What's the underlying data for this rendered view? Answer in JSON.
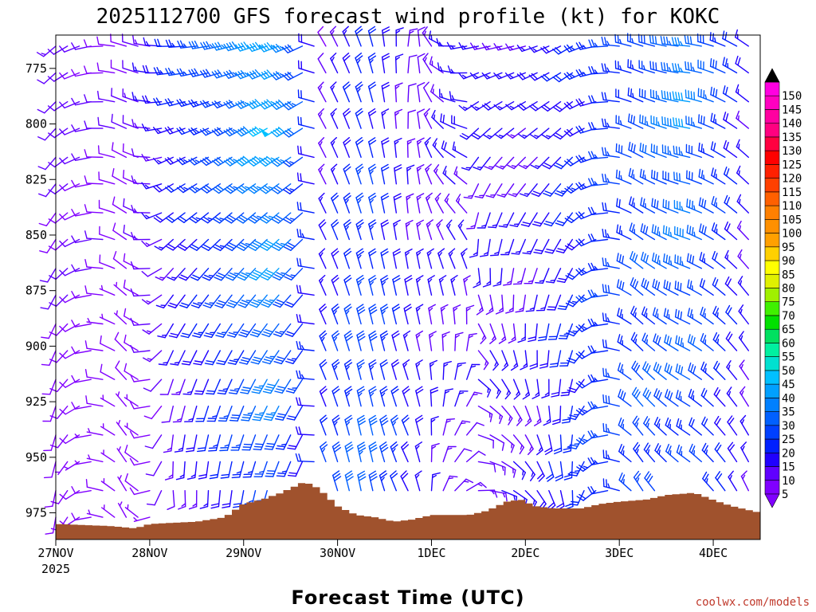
{
  "chart_data": {
    "type": "wind-barb-profile",
    "title": "2025112700 GFS forecast wind profile (kt) for KOKC",
    "xlabel": "Forecast Time (UTC)",
    "credit": "coolwx.com/models",
    "x_ticks": [
      {
        "label": "27NOV",
        "sublabel": "2025",
        "day": 0
      },
      {
        "label": "28NOV",
        "day": 1
      },
      {
        "label": "29NOV",
        "day": 2
      },
      {
        "label": "30NOV",
        "day": 3
      },
      {
        "label": "1DEC",
        "day": 4
      },
      {
        "label": "2DEC",
        "day": 5
      },
      {
        "label": "3DEC",
        "day": 6
      },
      {
        "label": "4DEC",
        "day": 7
      }
    ],
    "xlim_days": [
      0,
      7.5
    ],
    "y_ticks": [
      775,
      800,
      825,
      850,
      875,
      900,
      925,
      950,
      975
    ],
    "ylim_hpa": [
      760,
      987
    ],
    "colorbar": {
      "unit": "kt",
      "levels": [
        5,
        10,
        15,
        20,
        25,
        30,
        35,
        40,
        45,
        50,
        55,
        60,
        65,
        70,
        75,
        80,
        85,
        90,
        95,
        100,
        105,
        110,
        115,
        120,
        125,
        130,
        135,
        140,
        145,
        150
      ],
      "colors": [
        "#8000ff",
        "#6000ff",
        "#2000ff",
        "#0020ff",
        "#0040ff",
        "#0060ff",
        "#0080ff",
        "#00a0ff",
        "#00c0ff",
        "#00e0d0",
        "#00f0a0",
        "#00e060",
        "#00e000",
        "#40f000",
        "#a0f000",
        "#e0f000",
        "#ffff00",
        "#ffd000",
        "#ffa000",
        "#ff9000",
        "#ff8000",
        "#ff6000",
        "#ff4000",
        "#ff2000",
        "#ff0000",
        "#ff0040",
        "#ff0080",
        "#ff00a0",
        "#ff00c0",
        "#ff00e0"
      ]
    },
    "barb_times_days": [
      0.0,
      0.125,
      0.25,
      0.375,
      0.5,
      0.625,
      0.75,
      0.875,
      1.0,
      1.125,
      1.25,
      1.375,
      1.5,
      1.625,
      1.75,
      1.875,
      2.0,
      2.125,
      2.25,
      2.375,
      2.5,
      2.625,
      2.75,
      2.875,
      3.0,
      3.125,
      3.25,
      3.375,
      3.5,
      3.625,
      3.75,
      3.875,
      4.0,
      4.125,
      4.25,
      4.375,
      4.5,
      4.625,
      4.75,
      4.875,
      5.0,
      5.125,
      5.25,
      5.375,
      5.5,
      5.625,
      5.75,
      5.875,
      6.0,
      6.125,
      6.25,
      6.375,
      6.5,
      6.625,
      6.75,
      6.875,
      7.0,
      7.125,
      7.25,
      7.375
    ],
    "barb_levels_hpa": [
      765,
      777,
      790,
      802,
      815,
      827,
      840,
      852,
      865,
      877,
      890,
      902,
      915,
      927,
      940,
      952,
      965,
      977
    ],
    "wind_keyframes": [
      {
        "day": 0.0,
        "dir_deg": 230,
        "speed_kt": 12,
        "dir_sfc_deg": 190,
        "speed_sfc_kt": 8
      },
      {
        "day": 0.8,
        "dir_deg": 290,
        "speed_kt": 10,
        "dir_sfc_deg": 340,
        "speed_sfc_kt": 6
      },
      {
        "day": 1.2,
        "dir_deg": 270,
        "speed_kt": 20,
        "dir_sfc_deg": 170,
        "speed_sfc_kt": 10
      },
      {
        "day": 1.9,
        "dir_deg": 255,
        "speed_kt": 32,
        "dir_sfc_deg": 185,
        "speed_sfc_kt": 22
      },
      {
        "day": 2.35,
        "dir_deg": 250,
        "speed_kt": 48,
        "dir_sfc_deg": 195,
        "speed_sfc_kt": 30
      },
      {
        "day": 2.65,
        "dir_deg": 245,
        "speed_kt": 30,
        "dir_sfc_deg": 200,
        "speed_sfc_kt": 18
      },
      {
        "day": 2.85,
        "dir_deg": 330,
        "speed_kt": 10,
        "dir_sfc_deg": 340,
        "speed_sfc_kt": 25
      },
      {
        "day": 3.3,
        "dir_deg": 340,
        "speed_kt": 22,
        "dir_sfc_deg": 350,
        "speed_sfc_kt": 32
      },
      {
        "day": 3.8,
        "dir_deg": 10,
        "speed_kt": 10,
        "dir_sfc_deg": 330,
        "speed_sfc_kt": 20
      },
      {
        "day": 4.3,
        "dir_deg": 260,
        "speed_kt": 18,
        "dir_sfc_deg": 60,
        "speed_sfc_kt": 12
      },
      {
        "day": 5.0,
        "dir_deg": 255,
        "speed_kt": 15,
        "dir_sfc_deg": 130,
        "speed_sfc_kt": 15
      },
      {
        "day": 5.5,
        "dir_deg": 240,
        "speed_kt": 20,
        "dir_sfc_deg": 175,
        "speed_sfc_kt": 22
      },
      {
        "day": 6.2,
        "dir_deg": 290,
        "speed_kt": 25,
        "dir_sfc_deg": 330,
        "speed_sfc_kt": 28
      },
      {
        "day": 6.75,
        "dir_deg": 275,
        "speed_kt": 40,
        "dir_sfc_deg": 310,
        "speed_sfc_kt": 25
      },
      {
        "day": 7.5,
        "dir_deg": 310,
        "speed_kt": 12,
        "dir_sfc_deg": 340,
        "speed_sfc_kt": 12
      }
    ],
    "terrain_surface_hpa": [
      {
        "day": 0.0,
        "p": 980
      },
      {
        "day": 0.6,
        "p": 981
      },
      {
        "day": 0.85,
        "p": 982
      },
      {
        "day": 1.0,
        "p": 980
      },
      {
        "day": 1.5,
        "p": 979
      },
      {
        "day": 1.8,
        "p": 977
      },
      {
        "day": 2.0,
        "p": 971
      },
      {
        "day": 2.2,
        "p": 969
      },
      {
        "day": 2.4,
        "p": 966
      },
      {
        "day": 2.55,
        "p": 963
      },
      {
        "day": 2.65,
        "p": 961
      },
      {
        "day": 2.8,
        "p": 964
      },
      {
        "day": 3.0,
        "p": 972
      },
      {
        "day": 3.2,
        "p": 976
      },
      {
        "day": 3.4,
        "p": 977
      },
      {
        "day": 3.6,
        "p": 979
      },
      {
        "day": 3.8,
        "p": 978
      },
      {
        "day": 4.0,
        "p": 976
      },
      {
        "day": 4.4,
        "p": 976
      },
      {
        "day": 4.6,
        "p": 974
      },
      {
        "day": 4.8,
        "p": 970
      },
      {
        "day": 4.95,
        "p": 969
      },
      {
        "day": 5.1,
        "p": 972
      },
      {
        "day": 5.3,
        "p": 973
      },
      {
        "day": 5.6,
        "p": 973
      },
      {
        "day": 5.8,
        "p": 971
      },
      {
        "day": 6.0,
        "p": 970
      },
      {
        "day": 6.3,
        "p": 969
      },
      {
        "day": 6.5,
        "p": 967
      },
      {
        "day": 6.8,
        "p": 966
      },
      {
        "day": 7.05,
        "p": 970
      },
      {
        "day": 7.2,
        "p": 972
      },
      {
        "day": 7.4,
        "p": 974
      },
      {
        "day": 7.5,
        "p": 975
      }
    ],
    "terrain_color": "#a0522d"
  }
}
